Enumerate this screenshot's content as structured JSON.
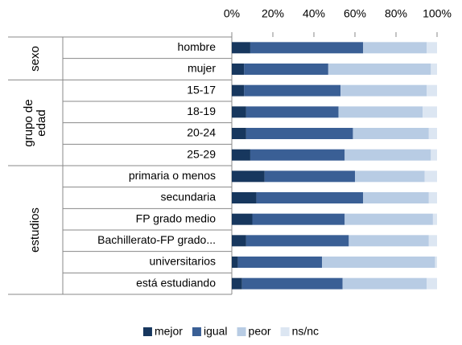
{
  "chart_data": {
    "type": "stacked-bar-horizontal",
    "groups": [
      {
        "name": "sexo",
        "categories": [
          "hombre",
          "mujer"
        ]
      },
      {
        "name": "grupo de edad",
        "categories": [
          "15-17",
          "18-19",
          "20-24",
          "25-29"
        ]
      },
      {
        "name": "estudios",
        "categories": [
          "primaria o menos",
          "secundaria",
          "FP grado medio",
          "Bachillerato-FP grado...",
          "universitarios",
          "está estudiando"
        ]
      }
    ],
    "series": [
      {
        "name": "mejor",
        "color": "#17375e",
        "values": [
          9,
          6,
          6,
          7,
          7,
          9,
          16,
          12,
          10,
          7,
          3,
          5
        ]
      },
      {
        "name": "igual",
        "color": "#3a5f95",
        "values": [
          55,
          41,
          47,
          45,
          52,
          46,
          44,
          52,
          45,
          50,
          41,
          49
        ]
      },
      {
        "name": "peor",
        "color": "#b8cce4",
        "values": [
          31,
          50,
          42,
          41,
          37,
          42,
          34,
          32,
          43,
          39,
          55,
          41
        ]
      },
      {
        "name": "ns/nc",
        "color": "#dce6f2",
        "values": [
          5,
          3,
          5,
          7,
          4,
          3,
          6,
          4,
          2,
          4,
          1,
          5
        ]
      }
    ],
    "xlim": [
      0,
      100
    ],
    "xticks": [
      {
        "value": 0,
        "label": "0%"
      },
      {
        "value": 20,
        "label": "20%"
      },
      {
        "value": 40,
        "label": "40%"
      },
      {
        "value": 60,
        "label": "60%"
      },
      {
        "value": 80,
        "label": "80%"
      },
      {
        "value": 100,
        "label": "100%"
      }
    ],
    "legend": "bottom"
  }
}
